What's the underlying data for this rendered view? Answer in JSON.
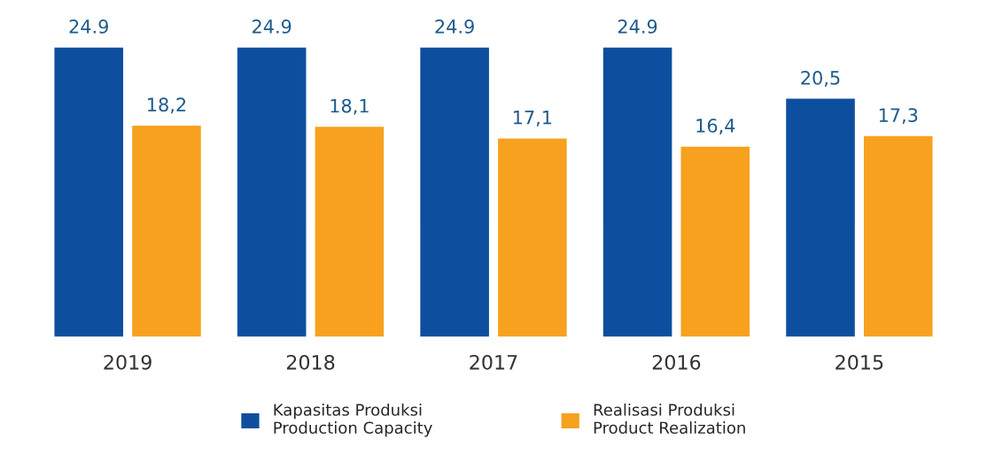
{
  "chart_data": {
    "type": "bar",
    "categories": [
      "2019",
      "2018",
      "2017",
      "2016",
      "2015"
    ],
    "series": [
      {
        "name": "Kapasitas Produksi\nProduction Capacity",
        "color": "#0d4f9e",
        "values": [
          24.9,
          24.9,
          24.9,
          24.9,
          20.5
        ],
        "value_labels": [
          "24.9",
          "24.9",
          "24.9",
          "24.9",
          "20,5"
        ]
      },
      {
        "name": "Realisasi Produksi\nProduct Realization",
        "color": "#f7a11f",
        "values": [
          18.2,
          18.1,
          17.1,
          16.4,
          17.3
        ],
        "value_labels": [
          "18,2",
          "18,1",
          "17,1",
          "16,4",
          "17,3"
        ]
      }
    ],
    "legend": "bottom",
    "grid": false
  }
}
